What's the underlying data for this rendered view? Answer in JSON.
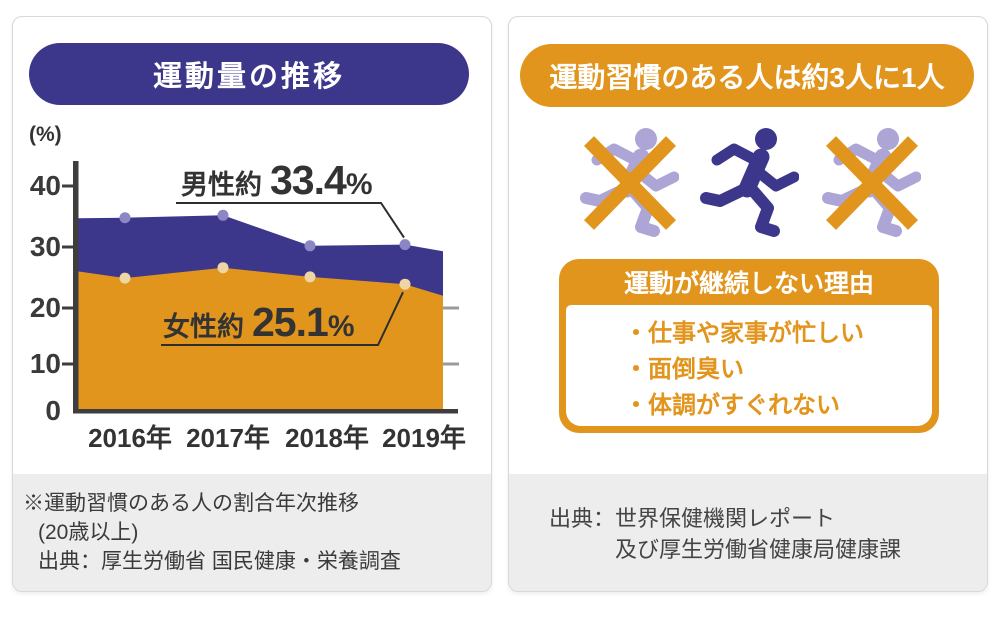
{
  "colors": {
    "navy": "#3d378c",
    "orange": "#e2951d",
    "lavender": "#aca5d6",
    "male_marker": "#8d86c4",
    "female_marker": "#eed6a4",
    "footer_bg": "#ededed",
    "axis": "#3f3e3e",
    "text": "#333333"
  },
  "left_panel": {
    "title": "運動量の推移",
    "footnote_lines": [
      "※運動習慣のある人の割合年次推移",
      "(20歳以上)",
      "出典：厚生労働省 国民健康・栄養調査"
    ]
  },
  "chart_data": {
    "type": "area",
    "title": "運動量の推移",
    "ylabel": "(%)",
    "xlabel": "",
    "categories": [
      "2016年",
      "2017年",
      "2018年",
      "2019年"
    ],
    "yticks": [
      40,
      30,
      20,
      10,
      0
    ],
    "ytick_labels": [
      "40",
      "30",
      "20",
      "10",
      "0"
    ],
    "ylim": [
      0,
      43
    ],
    "grid": false,
    "legend_position": "none",
    "right_stub_ticks": [
      20,
      10
    ],
    "series": [
      {
        "name": "男性",
        "color": "#3d378c",
        "marker_color": "#8d86c4",
        "values": [
          34.8,
          35.2,
          30.2,
          30.4
        ],
        "edge_left": 34.7,
        "edge_right": 29.3,
        "callout": {
          "prefix": "男性約",
          "value": "33.4",
          "unit": "%"
        }
      },
      {
        "name": "女性",
        "color": "#e2951d",
        "marker_color": "#eed6a4",
        "values": [
          24.9,
          26.6,
          25.1,
          23.9
        ],
        "edge_left": 26.0,
        "edge_right": 22.0,
        "callout": {
          "prefix": "女性約",
          "value": "25.1",
          "unit": "%"
        }
      }
    ]
  },
  "right_panel": {
    "title": "運動習慣のある人は約3人に1人",
    "icons": [
      "runner-crossed",
      "runner",
      "runner-crossed"
    ],
    "reason_box": {
      "title": "運動が継続しない理由",
      "items": [
        "・仕事や家事が忙しい",
        "・面倒臭い",
        "・体調がすぐれない"
      ]
    },
    "source_lines": [
      "出典：世界保健機関レポート",
      "及び厚生労働省健康局健康課"
    ]
  }
}
